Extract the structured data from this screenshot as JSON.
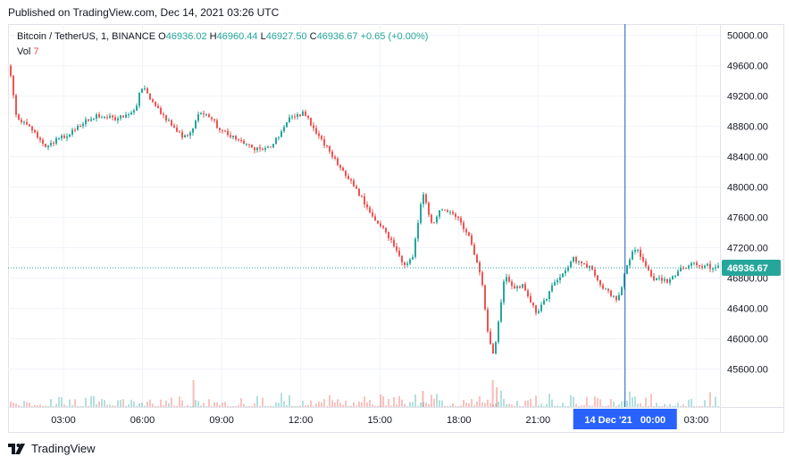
{
  "header": {
    "published": "Published on TradingView.com, Dec 14, 2021 03:26 UTC"
  },
  "legend": {
    "symbol": "Bitcoin / TetherUS, 1, BINANCE",
    "open_label": "O",
    "open": "46936.02",
    "high_label": "H",
    "high": "46960.44",
    "low_label": "L",
    "low": "46927.50",
    "close_label": "C",
    "close": "46936.67",
    "change": "+0.65 (+0.00%)",
    "vol_label": "Vol",
    "vol": "7"
  },
  "footer": {
    "brand": "TradingView"
  },
  "colors": {
    "up": "#26a69a",
    "down": "#ef5350",
    "crosshair": "#1e5bbf",
    "badge": "#2962ff",
    "price_tag": "#26a69a",
    "grid": "#f0f3fa"
  },
  "chart_data": {
    "type": "candlestick",
    "title": "Bitcoin / TetherUS, 1, BINANCE",
    "ylim": [
      45100,
      50150
    ],
    "y_ticks": [
      "50000.00",
      "49600.00",
      "49200.00",
      "48800.00",
      "48400.00",
      "48000.00",
      "47600.00",
      "47200.00",
      "46800.00",
      "46400.00",
      "46000.00",
      "45600.00"
    ],
    "y_tick_values": [
      50000,
      49600,
      49200,
      48800,
      48400,
      48000,
      47600,
      47200,
      46800,
      46400,
      46000,
      45600
    ],
    "x_ticks": [
      "03:00",
      "06:00",
      "09:00",
      "12:00",
      "15:00",
      "18:00",
      "21:00",
      "03:00"
    ],
    "x_tick_hours": [
      3,
      6,
      9,
      12,
      15,
      18,
      21,
      27
    ],
    "x_range_hours": [
      0.9,
      27.9
    ],
    "crosshair_hour": 24.3,
    "crosshair_label": "14 Dec '21   00:00",
    "last_price": 46936.67,
    "last_price_label": "46936.67",
    "path_hours": [
      0.9,
      1.2,
      1.8,
      2.3,
      2.6,
      3.2,
      3.7,
      4.3,
      5.0,
      5.7,
      5.9,
      6.4,
      7.0,
      7.5,
      7.8,
      8.1,
      8.6,
      8.9,
      9.5,
      10.3,
      10.9,
      11.5,
      12.1,
      12.5,
      13.0,
      13.4,
      14.2,
      14.7,
      15.2,
      15.6,
      15.9,
      16.2,
      16.6,
      16.9,
      17.3,
      17.9,
      18.4,
      18.8,
      19.1,
      19.3,
      19.7,
      20.0,
      20.4,
      20.9,
      21.3,
      21.7,
      22.3,
      22.9,
      23.5,
      24.0,
      24.4,
      24.7,
      25.3,
      25.9,
      26.3,
      26.8,
      27.0,
      27.3,
      27.6
    ],
    "path_prices": [
      49600,
      48900,
      48750,
      48500,
      48600,
      48700,
      48850,
      48950,
      48900,
      49020,
      49350,
      49100,
      48850,
      48650,
      48700,
      49000,
      48900,
      48750,
      48650,
      48500,
      48550,
      48900,
      48980,
      48750,
      48500,
      48300,
      47900,
      47600,
      47400,
      47150,
      46950,
      47050,
      47950,
      47500,
      47700,
      47600,
      47300,
      46850,
      45950,
      45800,
      46850,
      46650,
      46700,
      46350,
      46550,
      46800,
      47050,
      46950,
      46650,
      46500,
      47050,
      47200,
      46800,
      46750,
      46900,
      47000,
      46950,
      46970,
      46937
    ],
    "volume_max_label": "",
    "vol_last": 7
  }
}
